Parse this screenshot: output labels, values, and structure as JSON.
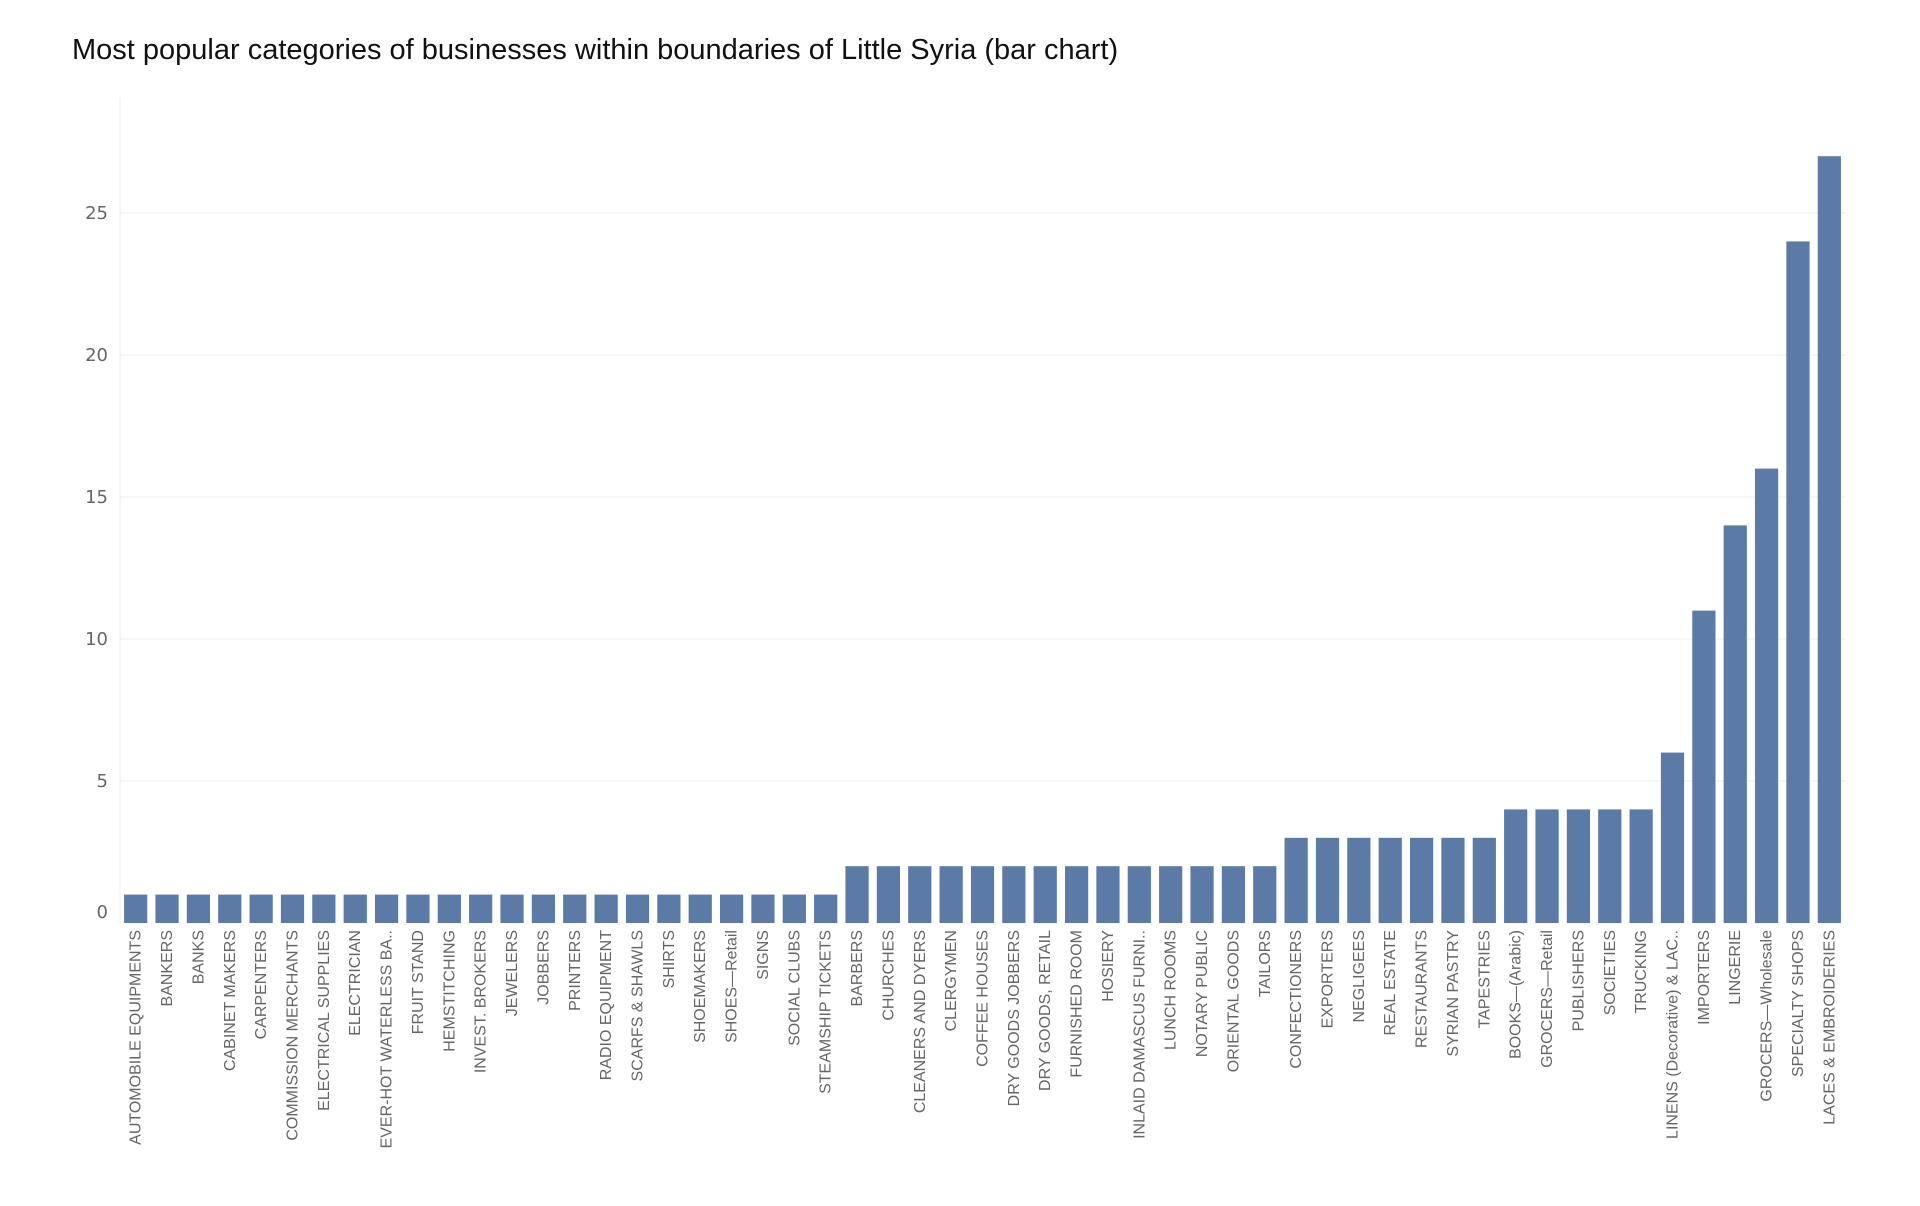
{
  "chart_data": {
    "type": "bar",
    "title": "Most popular categories of businesses within boundaries of Little Syria (bar chart)",
    "xlabel": "",
    "ylabel": "",
    "ylim": [
      0,
      28
    ],
    "yticks": [
      0,
      5,
      10,
      15,
      20,
      25
    ],
    "grid": true,
    "bar_color": "#5b7aa5",
    "categories": [
      "AUTOMOBILE EQUIPMENTS",
      "BANKERS",
      "BANKS",
      "CABINET MAKERS",
      "CARPENTERS",
      "COMMISSION MERCHANTS",
      "ELECTRICAL SUPPLIES",
      "ELECTRICIAN",
      "EVER-HOT WATERLESS BA..",
      "FRUIT STAND",
      "HEMSTITCHING",
      "INVEST. BROKERS",
      "JEWELERS",
      "JOBBERS",
      "PRINTERS",
      "RADIO EQUIPMENT",
      "SCARFS & SHAWLS",
      "SHIRTS",
      "SHOEMAKERS",
      "SHOES—Retail",
      "SIGNS",
      "SOCIAL CLUBS",
      "STEAMSHIP TICKETS",
      "BARBERS",
      "CHURCHES",
      "CLEANERS AND DYERS",
      "CLERGYMEN",
      "COFFEE HOUSES",
      "DRY GOODS JOBBERS",
      "DRY GOODS, RETAIL",
      "FURNISHED ROOM",
      "HOSIERY",
      "INLAID DAMASCUS FURNI..",
      "LUNCH ROOMS",
      "NOTARY PUBLIC",
      "ORIENTAL GOODS",
      "TAILORS",
      "CONFECTIONERS",
      "EXPORTERS",
      "NEGLIGEES",
      "REAL ESTATE",
      "RESTAURANTS",
      "SYRIAN PASTRY",
      "TAPESTRIES",
      "BOOKS—(Arabic)",
      "GROCERS—Retail",
      "PUBLISHERS",
      "SOCIETIES",
      "TRUCKING",
      "LINENS (Decorative) & LAC..",
      "IMPORTERS",
      "LINGERIE",
      "GROCERS—Wholesale",
      "SPECIALTY SHOPS",
      "LACES & EMBROIDERIES"
    ],
    "values": [
      1,
      1,
      1,
      1,
      1,
      1,
      1,
      1,
      1,
      1,
      1,
      1,
      1,
      1,
      1,
      1,
      1,
      1,
      1,
      1,
      1,
      1,
      1,
      2,
      2,
      2,
      2,
      2,
      2,
      2,
      2,
      2,
      2,
      2,
      2,
      2,
      2,
      3,
      3,
      3,
      3,
      3,
      3,
      3,
      4,
      4,
      4,
      4,
      4,
      6,
      11,
      14,
      16,
      24,
      27
    ]
  }
}
